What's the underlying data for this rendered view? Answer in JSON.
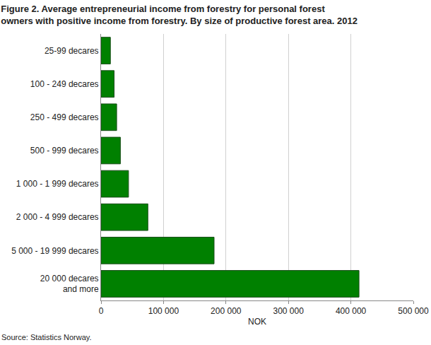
{
  "chart_data": {
    "type": "bar",
    "orientation": "horizontal",
    "title": "Figure 2. Average entrepreneurial income from forestry for personal forest\nowners with positive income from forestry. By size of productive forest area. 2012",
    "x_label": "NOK",
    "annotations": [
      "Source: Statistics Norway."
    ],
    "categories": [
      "25-99 decares",
      "100 - 249 decares",
      "250 - 499 decares",
      "500 - 999 decares",
      "1 000 - 1 999 decares",
      "2 000 - 4 999 decares",
      "5 000 - 19 999 decares",
      "20 000 decares\nand more"
    ],
    "values": [
      15000,
      21000,
      25000,
      31000,
      44000,
      75000,
      181000,
      413000
    ],
    "color": "#008000",
    "xlim": [
      0,
      500000
    ],
    "xticks": [
      0,
      {
        "value": 100000,
        "label": "100 000"
      },
      {
        "value": 200000,
        "label": "200 000"
      },
      {
        "value": 300000,
        "label": "300 000"
      },
      {
        "value": 400000,
        "label": "400 000"
      },
      {
        "value": 500000,
        "label": "500 000"
      }
    ],
    "grid": true
  }
}
